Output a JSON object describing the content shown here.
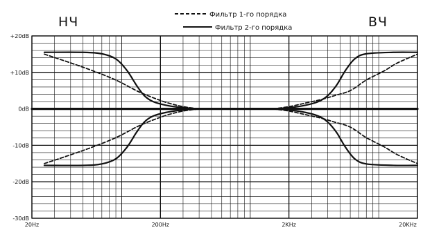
{
  "chart_data": {
    "type": "line",
    "annotations": {
      "left": "НЧ",
      "right": "ВЧ"
    },
    "legend": [
      {
        "name": "Фильтр 1-го порядка",
        "style": "dashed"
      },
      {
        "name": "Фильтр 2-го порядка",
        "style": "solid"
      }
    ],
    "legend_position": "top-center",
    "xscale": "log",
    "xlim": [
      20,
      20000
    ],
    "ylim": [
      -30,
      20
    ],
    "x_ticks": [
      {
        "value": 20,
        "label": "20Hz"
      },
      {
        "value": 200,
        "label": "200Hz"
      },
      {
        "value": 2000,
        "label": "2KHz"
      },
      {
        "value": 20000,
        "label": "20KHz"
      }
    ],
    "y_ticks": [
      {
        "value": 20,
        "label": "+20dB"
      },
      {
        "value": 10,
        "label": "+10dB"
      },
      {
        "value": 0,
        "label": "0dB"
      },
      {
        "value": -10,
        "label": "-10dB"
      },
      {
        "value": -20,
        "label": "-20dB"
      },
      {
        "value": -30,
        "label": "-30dB"
      }
    ],
    "grid": true,
    "series": [
      {
        "name": "Фильтр 1-го порядка",
        "style": "dashed",
        "band": "НЧ",
        "curve": "boost",
        "x": [
          25,
          40,
          60,
          90,
          130,
          160,
          190,
          230,
          300,
          400
        ],
        "y": [
          15,
          12.6,
          10.4,
          7.9,
          5.0,
          3.6,
          2.6,
          1.6,
          0.6,
          0
        ]
      },
      {
        "name": "Фильтр 1-го порядка",
        "style": "dashed",
        "band": "НЧ",
        "curve": "cut",
        "x": [
          25,
          40,
          60,
          90,
          130,
          160,
          190,
          230,
          300,
          400
        ],
        "y": [
          -15,
          -12.6,
          -10.4,
          -7.9,
          -5.0,
          -3.6,
          -2.6,
          -1.6,
          -0.6,
          0
        ]
      },
      {
        "name": "Фильтр 2-го порядка",
        "style": "solid",
        "band": "НЧ",
        "curve": "boost",
        "x": [
          25,
          50,
          70,
          90,
          110,
          130,
          150,
          175,
          220,
          300,
          400
        ],
        "y": [
          15.5,
          15.5,
          15.1,
          13.7,
          10.5,
          6.5,
          3.6,
          2.0,
          1.0,
          0.3,
          0
        ]
      },
      {
        "name": "Фильтр 2-го порядка",
        "style": "solid",
        "band": "НЧ",
        "curve": "cut",
        "x": [
          25,
          50,
          70,
          90,
          110,
          130,
          150,
          175,
          220,
          300,
          400
        ],
        "y": [
          -15.5,
          -15.5,
          -15.1,
          -13.7,
          -10.5,
          -6.5,
          -3.6,
          -2.0,
          -1.0,
          -0.3,
          0
        ]
      },
      {
        "name": "Фильтр 1-го порядка",
        "style": "dashed",
        "band": "ВЧ",
        "curve": "boost",
        "x": [
          1500,
          2000,
          2700,
          3600,
          4500,
          6000,
          8000,
          11000,
          14000,
          20000
        ],
        "y": [
          0,
          0.6,
          1.6,
          2.6,
          3.6,
          5.0,
          7.9,
          10.4,
          12.6,
          15
        ]
      },
      {
        "name": "Фильтр 1-го порядка",
        "style": "dashed",
        "band": "ВЧ",
        "curve": "cut",
        "x": [
          1500,
          2000,
          2700,
          3600,
          4500,
          6000,
          8000,
          11000,
          14000,
          20000
        ],
        "y": [
          0,
          -0.6,
          -1.6,
          -2.6,
          -3.6,
          -5.0,
          -7.9,
          -10.4,
          -12.6,
          -15
        ]
      },
      {
        "name": "Фильтр 2-го порядка",
        "style": "solid",
        "band": "ВЧ",
        "curve": "boost",
        "x": [
          1500,
          2000,
          2700,
          3400,
          4000,
          4700,
          5500,
          6500,
          8000,
          13000,
          20000
        ],
        "y": [
          0,
          0.3,
          1.0,
          2.0,
          3.6,
          6.5,
          10.5,
          13.7,
          15.1,
          15.5,
          15.5
        ]
      },
      {
        "name": "Фильтр 2-го порядка",
        "style": "solid",
        "band": "ВЧ",
        "curve": "cut",
        "x": [
          1500,
          2000,
          2700,
          3400,
          4000,
          4700,
          5500,
          6500,
          8000,
          13000,
          20000
        ],
        "y": [
          0,
          -0.3,
          -1.0,
          -2.0,
          -3.6,
          -6.5,
          -10.5,
          -13.7,
          -15.1,
          -15.5,
          -15.5
        ]
      },
      {
        "name": "",
        "style": "solid-thick",
        "curve": "flat",
        "x": [
          20,
          20000
        ],
        "y": [
          0,
          0
        ]
      }
    ]
  }
}
